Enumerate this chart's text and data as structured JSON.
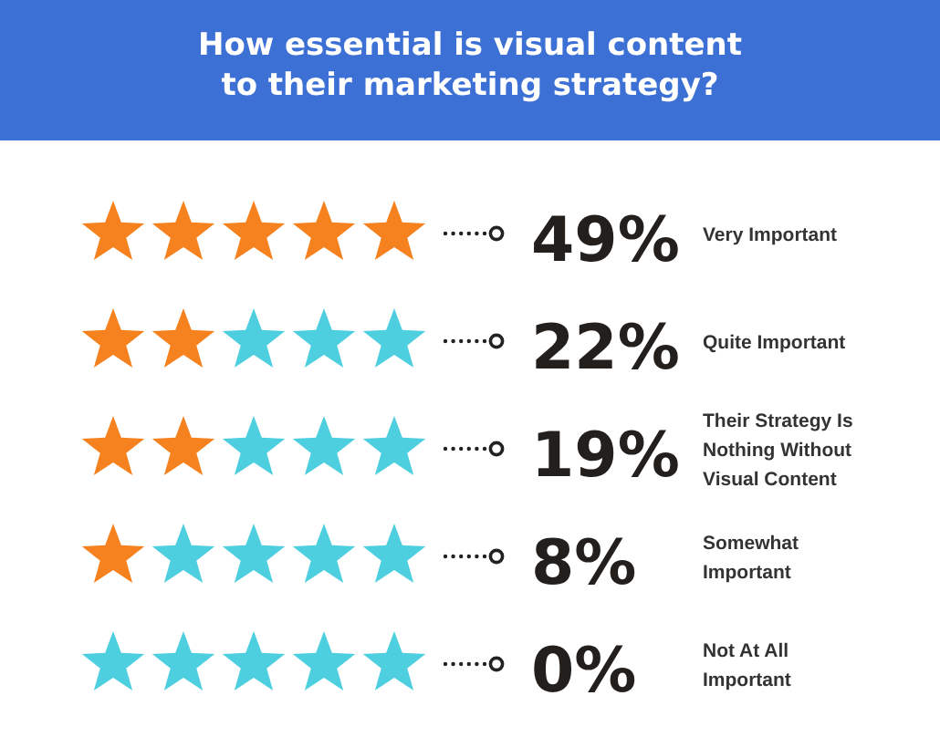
{
  "chart_data": {
    "type": "other",
    "title": "How essential is visual content to their marketing strategy?",
    "categories": [
      "Very Important",
      "Quite Important",
      "Their Strategy Is Nothing Without Visual Content",
      "Somewhat Important",
      "Not At All Important"
    ],
    "values": [
      49,
      22,
      19,
      8,
      0
    ],
    "value_labels": [
      "49%",
      "22%",
      "19%",
      "8%",
      "0%"
    ]
  }
}
